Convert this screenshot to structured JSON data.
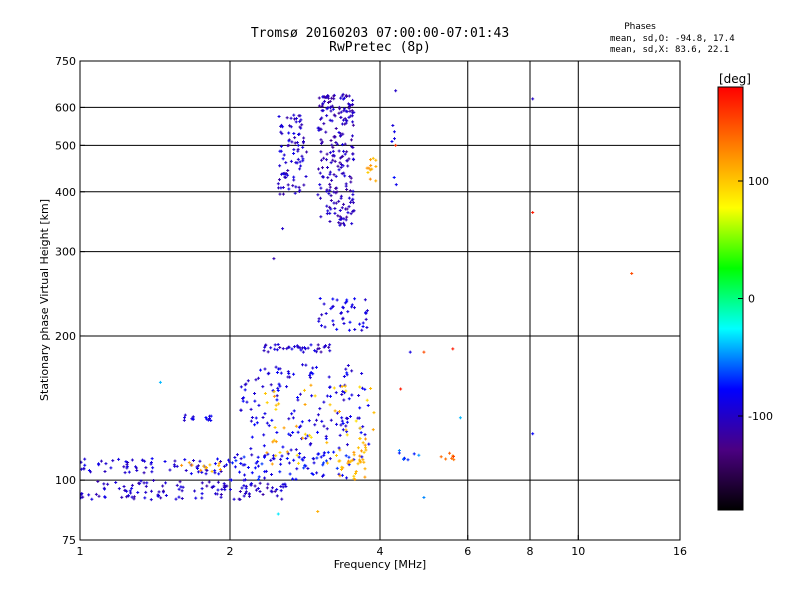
{
  "chart_data": {
    "type": "scatter",
    "title": "Tromsø 20160203 07:00:00-07:01:43",
    "subtitle": "RwPretec (8p)",
    "stats": {
      "heading": "Phases",
      "line1": "mean, sd,O: -94.8, 17.4",
      "line2": "mean, sd,X:  83.6, 22.1"
    },
    "xlabel": "Frequency [MHz]",
    "ylabel": "Stationary phase Virtual Height [km]",
    "x_scale": "log",
    "y_scale": "log",
    "xlim": [
      1,
      16
    ],
    "ylim": [
      75,
      750
    ],
    "x_ticks": [
      1,
      2,
      4,
      6,
      8,
      10,
      16
    ],
    "y_ticks": [
      75,
      100,
      200,
      300,
      400,
      500,
      600,
      750
    ],
    "x_gridlines": [
      2,
      4,
      6,
      8,
      10
    ],
    "y_gridlines": [
      100,
      200,
      300,
      400,
      500,
      600
    ],
    "colorbar": {
      "label": "[deg]",
      "range": [
        -180,
        180
      ],
      "ticks": [
        100,
        0,
        -100
      ],
      "colors": [
        "#000000",
        "#4b0082",
        "#0000ff",
        "#00ffff",
        "#00ff00",
        "#ffff00",
        "#ff8000",
        "#ff0000"
      ]
    },
    "clusters": [
      {
        "fmin": 1.0,
        "fmax": 2.6,
        "hmin": 91,
        "hmax": 100,
        "phase": -100,
        "n": 130
      },
      {
        "fmin": 1.0,
        "fmax": 2.0,
        "hmin": 103,
        "hmax": 111,
        "phase": -95,
        "n": 70
      },
      {
        "fmin": 1.55,
        "fmax": 1.95,
        "hmin": 104,
        "hmax": 109,
        "phase": 110,
        "n": 12
      },
      {
        "fmin": 1.6,
        "fmax": 1.85,
        "hmin": 133,
        "hmax": 137,
        "phase": -90,
        "n": 14
      },
      {
        "fmin": 2.0,
        "fmax": 3.6,
        "hmin": 100,
        "hmax": 115,
        "phase": -80,
        "n": 70
      },
      {
        "fmin": 2.3,
        "fmax": 3.2,
        "hmin": 185,
        "hmax": 192,
        "phase": -100,
        "n": 40
      },
      {
        "fmin": 2.1,
        "fmax": 3.8,
        "hmin": 110,
        "hmax": 175,
        "phase": -90,
        "n": 170
      },
      {
        "fmin": 2.3,
        "fmax": 3.9,
        "hmin": 108,
        "hmax": 160,
        "phase": 105,
        "n": 55
      },
      {
        "fmin": 3.0,
        "fmax": 3.8,
        "hmin": 205,
        "hmax": 240,
        "phase": -90,
        "n": 45
      },
      {
        "fmin": 3.3,
        "fmax": 3.8,
        "hmin": 100,
        "hmax": 120,
        "phase": 110,
        "n": 30
      },
      {
        "fmin": 2.5,
        "fmax": 2.85,
        "hmin": 395,
        "hmax": 580,
        "phase": -100,
        "n": 90
      },
      {
        "fmin": 3.0,
        "fmax": 3.55,
        "hmin": 340,
        "hmax": 645,
        "phase": -105,
        "n": 230
      },
      {
        "fmin": 3.75,
        "fmax": 3.95,
        "hmin": 420,
        "hmax": 470,
        "phase": 110,
        "n": 12
      },
      {
        "fmin": 4.2,
        "fmax": 4.35,
        "hmin": 400,
        "hmax": 580,
        "phase": -90,
        "n": 6
      },
      {
        "fmin": 4.3,
        "fmax": 4.8,
        "hmin": 110,
        "hmax": 116,
        "phase": -60,
        "n": 8
      },
      {
        "fmin": 5.3,
        "fmax": 5.7,
        "hmin": 110,
        "hmax": 114,
        "phase": 140,
        "n": 8
      }
    ],
    "points": [
      {
        "f": 4.3,
        "h": 650,
        "phase": -100
      },
      {
        "f": 8.1,
        "h": 625,
        "phase": -100
      },
      {
        "f": 8.1,
        "h": 362,
        "phase": 170
      },
      {
        "f": 12.8,
        "h": 270,
        "phase": 150
      },
      {
        "f": 8.1,
        "h": 125,
        "phase": -80
      },
      {
        "f": 2.45,
        "h": 290,
        "phase": -110
      },
      {
        "f": 2.55,
        "h": 335,
        "phase": -100
      },
      {
        "f": 4.6,
        "h": 185,
        "phase": -90
      },
      {
        "f": 4.9,
        "h": 185,
        "phase": 150
      },
      {
        "f": 5.6,
        "h": 188,
        "phase": 170
      },
      {
        "f": 5.8,
        "h": 135,
        "phase": -40
      },
      {
        "f": 4.4,
        "h": 155,
        "phase": 170
      },
      {
        "f": 2.5,
        "h": 85,
        "phase": -30
      },
      {
        "f": 3.0,
        "h": 86,
        "phase": 110
      },
      {
        "f": 4.9,
        "h": 92,
        "phase": -50
      },
      {
        "f": 1.45,
        "h": 160,
        "phase": -40
      },
      {
        "f": 4.3,
        "h": 500,
        "phase": 160
      }
    ]
  }
}
